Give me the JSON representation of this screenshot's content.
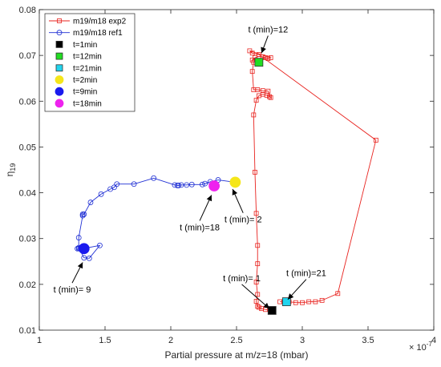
{
  "chart_data": {
    "type": "line",
    "xlabel": "Partial pressure at m/z=18 (mbar)",
    "ylabel_main": "η",
    "ylabel_sub": "19",
    "x_exponent_base": "× 10",
    "x_exponent_power": "-7",
    "xlim": [
      1,
      4
    ],
    "ylim": [
      0.01,
      0.08
    ],
    "grid": false,
    "legend_position": "top-left",
    "x_ticks": [
      1,
      1.5,
      2,
      2.5,
      3,
      3.5,
      4
    ],
    "x_tick_labels": [
      "1",
      "1.5",
      "2",
      "2.5",
      "3",
      "3.5",
      "4"
    ],
    "y_ticks": [
      0.01,
      0.02,
      0.03,
      0.04,
      0.05,
      0.06,
      0.07,
      0.08
    ],
    "y_tick_labels": [
      "0.01",
      "0.02",
      "0.03",
      "0.04",
      "0.05",
      "0.06",
      "0.07",
      "0.08"
    ],
    "series": [
      {
        "name": "m19/m18 exp2",
        "color": "#e8231f",
        "marker": "square-open",
        "x": [
          2.77,
          2.72,
          2.69,
          2.67,
          2.66,
          2.65,
          2.66,
          2.65,
          2.66,
          2.66,
          2.65,
          2.64,
          2.63,
          2.65,
          2.67,
          2.7,
          2.73,
          2.75,
          2.76,
          2.74,
          2.7,
          2.66,
          2.63,
          2.62,
          2.63,
          2.62,
          2.64,
          2.67,
          2.7,
          2.72,
          2.74,
          2.76,
          2.6,
          2.62,
          2.67,
          3.56,
          3.27,
          3.15,
          3.1,
          3.05,
          3.0,
          2.95,
          2.9,
          2.86,
          2.83
        ],
        "y": [
          0.0143,
          0.0145,
          0.0147,
          0.015,
          0.0152,
          0.0163,
          0.0178,
          0.0205,
          0.0245,
          0.0285,
          0.0355,
          0.0445,
          0.057,
          0.0602,
          0.0612,
          0.0615,
          0.0613,
          0.061,
          0.0608,
          0.0622,
          0.0623,
          0.0625,
          0.0625,
          0.0665,
          0.0685,
          0.069,
          0.0695,
          0.0698,
          0.0697,
          0.0695,
          0.0693,
          0.0695,
          0.071,
          0.0705,
          0.0702,
          0.0515,
          0.018,
          0.0165,
          0.0162,
          0.0162,
          0.016,
          0.016,
          0.0162,
          0.0162,
          0.0162
        ]
      },
      {
        "name": "m19/m18 ref1",
        "color": "#1f2fd4",
        "marker": "circle-open",
        "x": [
          2.49,
          2.36,
          2.3,
          2.26,
          2.24,
          2.16,
          2.12,
          2.08,
          2.06,
          2.05,
          2.03,
          1.87,
          1.72,
          1.59,
          1.57,
          1.54,
          1.47,
          1.39,
          1.34,
          1.33,
          1.33,
          1.3,
          1.3,
          1.34,
          1.38,
          1.46,
          1.33,
          1.31,
          1.3,
          1.29
        ],
        "y": [
          0.0423,
          0.0428,
          0.0424,
          0.042,
          0.0418,
          0.0418,
          0.0417,
          0.0417,
          0.0416,
          0.0416,
          0.0417,
          0.0432,
          0.0419,
          0.0419,
          0.0412,
          0.0408,
          0.0397,
          0.0379,
          0.0353,
          0.0353,
          0.035,
          0.0302,
          0.028,
          0.0258,
          0.0257,
          0.0285,
          0.0278,
          0.0278,
          0.0278,
          0.0278
        ]
      }
    ],
    "highlight_points": [
      {
        "name": "t=1min",
        "color": "#000000",
        "marker": "square",
        "x": 2.77,
        "y": 0.0143
      },
      {
        "name": "t=12min",
        "color": "#22dd22",
        "marker": "square",
        "x": 2.67,
        "y": 0.0685
      },
      {
        "name": "t=21min",
        "color": "#22d4ee",
        "marker": "square",
        "x": 2.88,
        "y": 0.0162
      },
      {
        "name": "t=2min",
        "color": "#f5e61a",
        "marker": "circle",
        "x": 2.49,
        "y": 0.0423
      },
      {
        "name": "t=9min",
        "color": "#1a1aee",
        "marker": "circle",
        "x": 1.34,
        "y": 0.0278
      },
      {
        "name": "t=18min",
        "color": "#ee22ee",
        "marker": "circle",
        "x": 2.33,
        "y": 0.0415
      }
    ],
    "annotations": [
      {
        "text": "t (min)=12",
        "x": 2.74,
        "y": 0.075,
        "tx": 2.69,
        "ty": 0.0705
      },
      {
        "text": "t (min)=21",
        "x": 3.03,
        "y": 0.0218,
        "tx": 2.89,
        "ty": 0.0167
      },
      {
        "text": "t (min)= 1",
        "x": 2.54,
        "y": 0.0207,
        "tx": 2.75,
        "ty": 0.0147
      },
      {
        "text": "t (min)= 2",
        "x": 2.55,
        "y": 0.0335,
        "tx": 2.47,
        "ty": 0.0408
      },
      {
        "text": "t (min)=18",
        "x": 2.22,
        "y": 0.0318,
        "tx": 2.31,
        "ty": 0.0395
      },
      {
        "text": "t (min)= 9",
        "x": 1.25,
        "y": 0.0182,
        "tx": 1.33,
        "ty": 0.0248
      }
    ]
  }
}
